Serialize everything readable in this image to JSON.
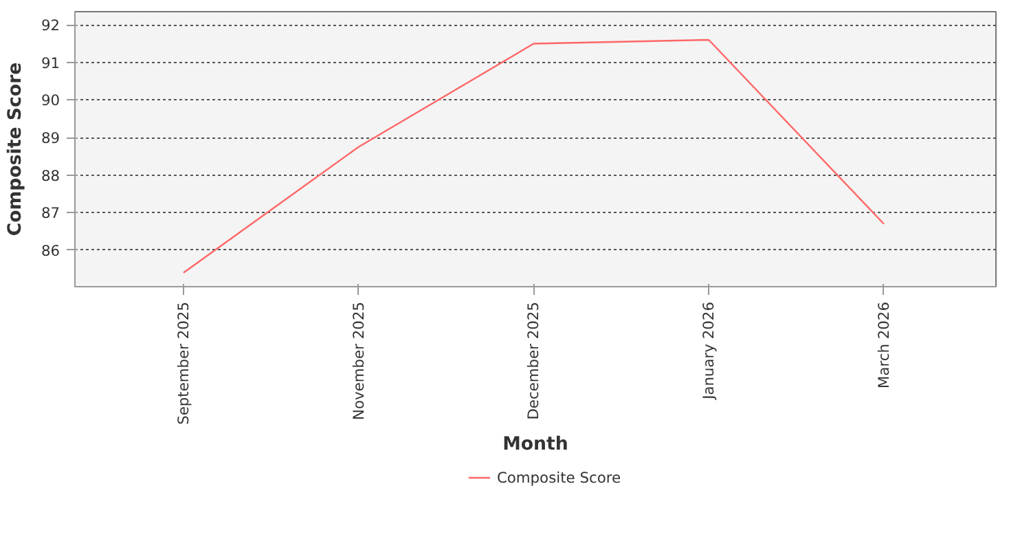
{
  "chart_data": {
    "type": "line",
    "xlabel": "Month",
    "ylabel": "Composite Score",
    "categories": [
      "September 2025",
      "November 2025",
      "December 2025",
      "January 2026",
      "March 2026"
    ],
    "series": [
      {
        "name": "Composite Score",
        "color": "#ff6666",
        "values": [
          85.4,
          88.75,
          91.5,
          91.6,
          86.7
        ]
      }
    ],
    "ylim": [
      85.03,
      92.35
    ],
    "yticks": [
      86,
      87,
      88,
      89,
      90,
      91,
      92
    ],
    "grid": "y",
    "legend": "bottom",
    "marker": "none",
    "line_style": "solid"
  }
}
